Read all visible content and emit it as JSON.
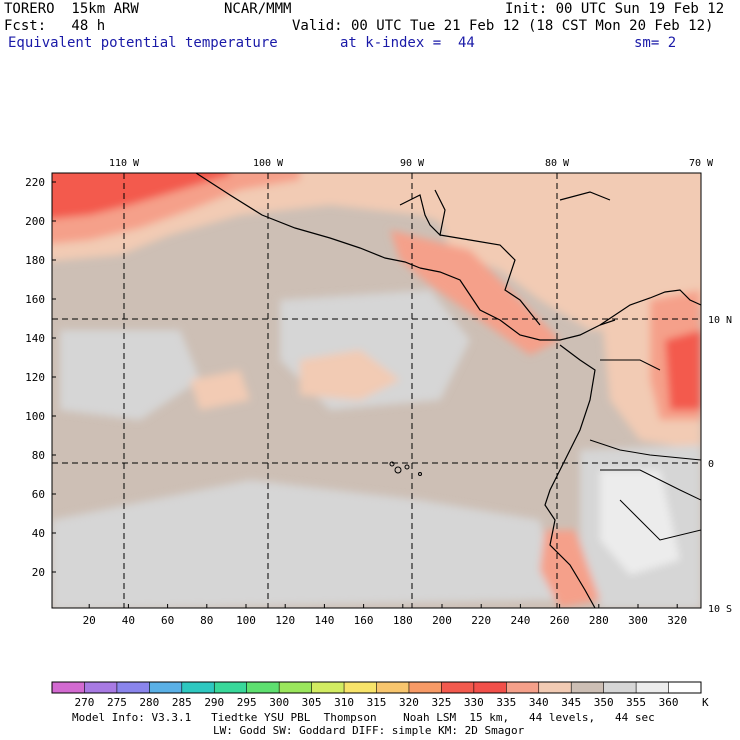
{
  "header": {
    "model": "TORERO  15km ARW",
    "org": "NCAR/MMM",
    "init": "Init: 00 UTC Sun 19 Feb 12",
    "fcst": "Fcst:   48 h",
    "valid": "Valid: 00 UTC Tue 21 Feb 12 (18 CST Mon 20 Feb 12)",
    "field": "Equivalent potential temperature",
    "level": "at k-index =  44",
    "smooth": "sm= 2"
  },
  "map": {
    "lon_labels": [
      "110 W",
      "100 W",
      "90 W",
      "80 W",
      "70 W"
    ],
    "lat_labels": [
      "10 N",
      "0",
      "10 S"
    ],
    "x_ticks": [
      "20",
      "40",
      "60",
      "80",
      "100",
      "120",
      "140",
      "160",
      "180",
      "200",
      "220",
      "240",
      "260",
      "280",
      "300",
      "320"
    ],
    "y_ticks": [
      "20",
      "40",
      "60",
      "80",
      "100",
      "120",
      "140",
      "160",
      "180",
      "200",
      "220"
    ]
  },
  "colorbar": {
    "labels": [
      "270",
      "275",
      "280",
      "285",
      "290",
      "295",
      "300",
      "305",
      "310",
      "315",
      "320",
      "325",
      "330",
      "335",
      "340",
      "345",
      "350",
      "355",
      "360"
    ],
    "unit": "K",
    "colors": [
      "#d36ad1",
      "#a87ae3",
      "#8a85ec",
      "#5ab0e6",
      "#2ec8c0",
      "#38d89a",
      "#5ee070",
      "#9ae65c",
      "#d2ec62",
      "#f8e46a",
      "#f8c66e",
      "#f79a66",
      "#f35a4e",
      "#f2504a",
      "#f5a08a",
      "#f2cbb4",
      "#cdbfb5",
      "#d6d6d6",
      "#ececec",
      "#ffffff"
    ]
  },
  "footer": {
    "line1": "Model Info: V3.3.1   Tiedtke YSU PBL  Thompson    Noah LSM  15 km,   44 levels,   44 sec",
    "line2": "LW: Godd SW: Goddard DIFF: simple KM: 2D Smagor"
  }
}
